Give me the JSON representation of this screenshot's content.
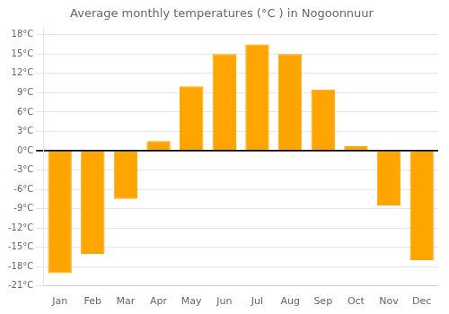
{
  "chart_data": {
    "type": "bar",
    "title": "Average monthly temperatures (°C ) in Nogoonnuur",
    "categories": [
      "Jan",
      "Feb",
      "Mar",
      "Apr",
      "May",
      "Jun",
      "Jul",
      "Aug",
      "Sep",
      "Oct",
      "Nov",
      "Dec"
    ],
    "values": [
      -19,
      -16,
      -7.5,
      1.5,
      10,
      15,
      16.5,
      15,
      9.5,
      0.7,
      -8.5,
      -17
    ],
    "color": "#FFA500",
    "ylim": [
      -21,
      19
    ],
    "yticks": [
      {
        "value": -21,
        "label": "-21°C"
      },
      {
        "value": -18,
        "label": "-18°C"
      },
      {
        "value": -15,
        "label": "-15°C"
      },
      {
        "value": -12,
        "label": "-12°C"
      },
      {
        "value": -9,
        "label": "-9°C"
      },
      {
        "value": -6,
        "label": "-6°C"
      },
      {
        "value": -3,
        "label": "-3°C"
      },
      {
        "value": 0,
        "label": "0°C"
      },
      {
        "value": 3,
        "label": "3°C"
      },
      {
        "value": 6,
        "label": "6°C"
      },
      {
        "value": 9,
        "label": "9°C"
      },
      {
        "value": 12,
        "label": "12°C"
      },
      {
        "value": 15,
        "label": "15°C"
      },
      {
        "value": 18,
        "label": "18°C"
      }
    ],
    "grid": true
  }
}
